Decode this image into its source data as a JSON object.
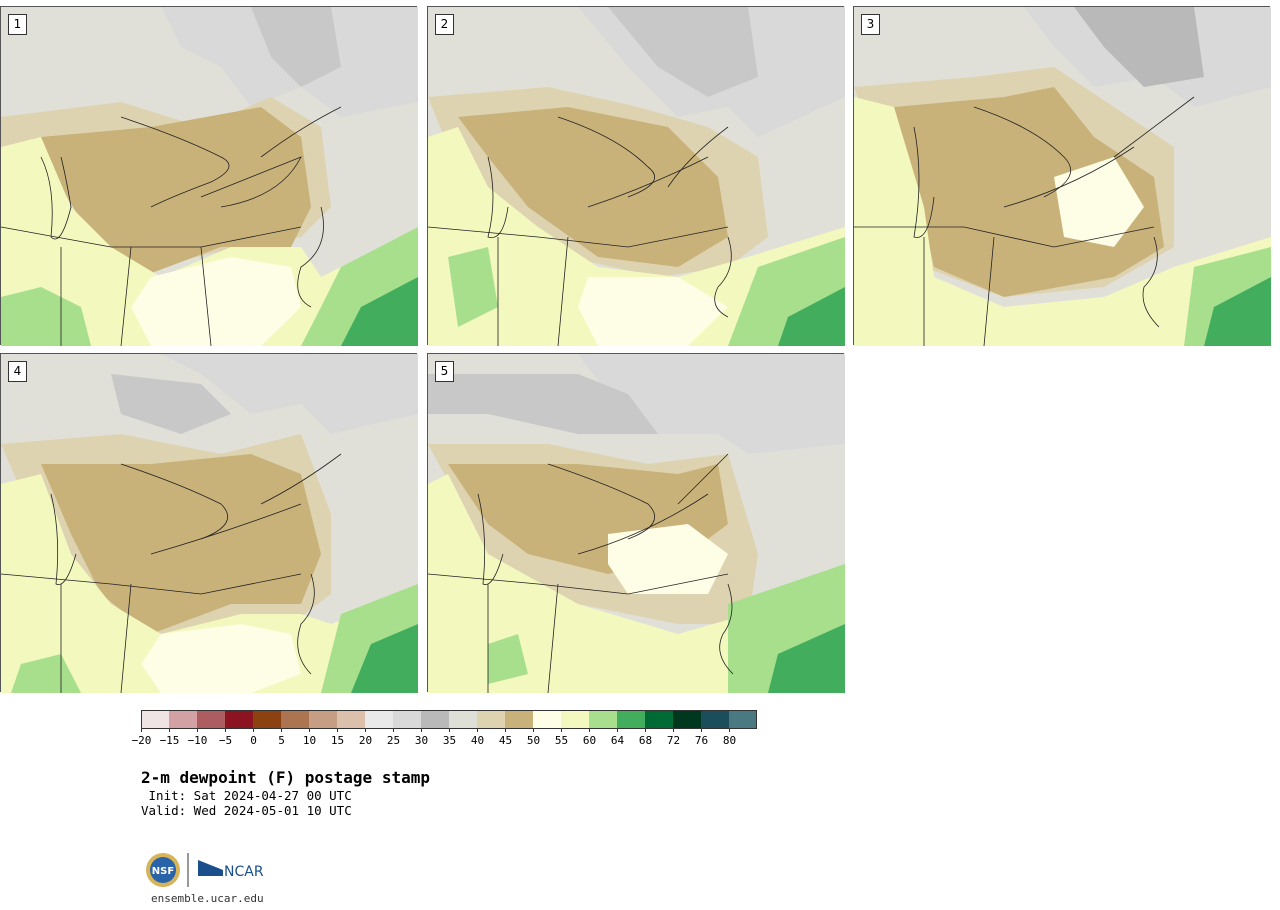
{
  "panels": [
    {
      "label": "1"
    },
    {
      "label": "2"
    },
    {
      "label": "3"
    },
    {
      "label": "4"
    },
    {
      "label": "5"
    }
  ],
  "colorbar": {
    "colors": [
      "#efe3e3",
      "#d3a1a3",
      "#ad5d60",
      "#8c1420",
      "#8b4210",
      "#ac7451",
      "#c59e83",
      "#dbc0ac",
      "#e9e9e9",
      "#d9d9d9",
      "#b9b9b9",
      "#dedfd6",
      "#ded3b0",
      "#c8b27a",
      "#fefde6",
      "#f3f9be",
      "#a7df8c",
      "#42ad5d",
      "#006a35",
      "#00381f",
      "#1b4d5a",
      "#4b7982"
    ],
    "ticks": [
      "−20",
      "−15",
      "−10",
      "−5",
      "0",
      "5",
      "10",
      "15",
      "20",
      "25",
      "30",
      "35",
      "40",
      "45",
      "50",
      "55",
      "60",
      "64",
      "68",
      "72",
      "76",
      "80"
    ]
  },
  "title": "2-m dewpoint (F) postage stamp",
  "init": " Init: Sat 2024-04-27 00 UTC",
  "valid": "Valid: Wed 2024-05-01 10 UTC",
  "logos": {
    "nsf": "NSF",
    "ncar": "NCAR"
  },
  "site": "ensemble.ucar.edu"
}
